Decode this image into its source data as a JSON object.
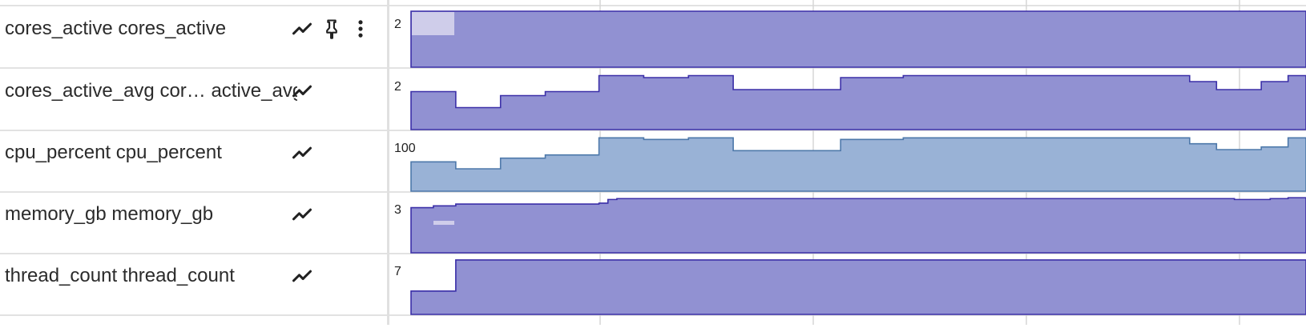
{
  "colors": {
    "purple_fill": "#9191d2",
    "purple_line": "#3b2fa8",
    "purple_light": "#cfcdea",
    "blue_fill": "#99b2d6",
    "blue_line": "#4d78aa",
    "grid": "#d6d6d6"
  },
  "rows": [
    {
      "label": "cores_active cores_active",
      "icons": [
        "trend-icon",
        "pin-icon",
        "more-vert-icon"
      ],
      "y_max_label": "2",
      "color": "purple",
      "values": [
        2,
        2
      ],
      "steps_x": [
        0,
        1
      ]
    },
    {
      "label": "cores_active_avg cor… active_avg",
      "icons": [
        "trend-icon"
      ],
      "y_max_label": "2"
    },
    {
      "label": "cpu_percent cpu_percent",
      "icons": [
        "trend-icon"
      ],
      "y_max_label": "100"
    },
    {
      "label": "memory_gb memory_gb",
      "icons": [
        "trend-icon"
      ],
      "y_max_label": "3"
    },
    {
      "label": "thread_count thread_count",
      "icons": [
        "trend-icon"
      ],
      "y_max_label": "7"
    }
  ],
  "chart_data": [
    {
      "type": "area",
      "series": [
        {
          "name": "cores_active",
          "values": [
            2,
            2
          ]
        }
      ],
      "step": true
    },
    {
      "type": "area",
      "series": [
        {
          "name": "cores_active_avg",
          "values": [
            0.95,
            0.55,
            0.85,
            0.95,
            1.35,
            1.3,
            1.35,
            1.0,
            1.3,
            1.35,
            1.35,
            1.2,
            1.0,
            1.2,
            1.35,
            1.25
          ]
        }
      ],
      "step": true
    },
    {
      "type": "area",
      "series": [
        {
          "name": "cpu_percent",
          "values": [
            55,
            42,
            62,
            68,
            100,
            97,
            100,
            76,
            97,
            100,
            100,
            89,
            78,
            83,
            100,
            93
          ]
        }
      ],
      "step": true
    },
    {
      "type": "area",
      "series": [
        {
          "name": "memory_gb",
          "values": [
            2.5,
            2.6,
            2.7,
            2.7,
            2.75,
            2.95,
            3.0,
            3.0,
            3.0,
            2.95,
            3.0,
            3.05
          ]
        }
      ],
      "step": true
    },
    {
      "type": "area",
      "series": [
        {
          "name": "thread_count",
          "values": [
            3,
            7,
            7
          ]
        }
      ],
      "step": true
    }
  ]
}
